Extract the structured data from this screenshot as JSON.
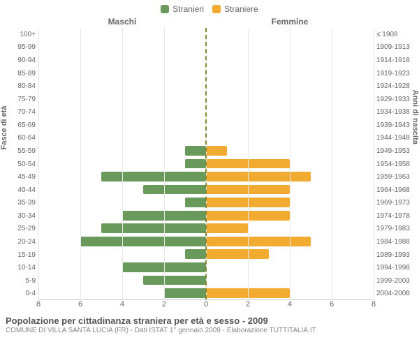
{
  "chart": {
    "type": "population-pyramid",
    "legend": {
      "male": {
        "label": "Stranieri",
        "color": "#6a9a5b"
      },
      "female": {
        "label": "Straniere",
        "color": "#f0ab30"
      }
    },
    "headers": {
      "male": "Maschi",
      "female": "Femmine"
    },
    "axis_labels": {
      "left": "Fasce di età",
      "right": "Anni di nascita"
    },
    "x_max": 8,
    "x_ticks": [
      8,
      6,
      4,
      2,
      0,
      2,
      4,
      6,
      8
    ],
    "grid_color": "#e8e8e8",
    "center_line_color": "#888833",
    "background_color": "#ffffff",
    "tick_color": "#666666",
    "tick_fontsize": 10,
    "bar_height_pct": 74,
    "rows": [
      {
        "age": "100+",
        "birth": "≤ 1908",
        "m": 0,
        "f": 0
      },
      {
        "age": "95-99",
        "birth": "1909-1913",
        "m": 0,
        "f": 0
      },
      {
        "age": "90-94",
        "birth": "1914-1918",
        "m": 0,
        "f": 0
      },
      {
        "age": "85-89",
        "birth": "1919-1923",
        "m": 0,
        "f": 0
      },
      {
        "age": "80-84",
        "birth": "1924-1928",
        "m": 0,
        "f": 0
      },
      {
        "age": "75-79",
        "birth": "1929-1933",
        "m": 0,
        "f": 0
      },
      {
        "age": "70-74",
        "birth": "1934-1938",
        "m": 0,
        "f": 0
      },
      {
        "age": "65-69",
        "birth": "1939-1943",
        "m": 0,
        "f": 0
      },
      {
        "age": "60-64",
        "birth": "1944-1948",
        "m": 0,
        "f": 0
      },
      {
        "age": "55-59",
        "birth": "1949-1953",
        "m": 1,
        "f": 1
      },
      {
        "age": "50-54",
        "birth": "1954-1958",
        "m": 1,
        "f": 4
      },
      {
        "age": "45-49",
        "birth": "1959-1963",
        "m": 5,
        "f": 5
      },
      {
        "age": "40-44",
        "birth": "1964-1968",
        "m": 3,
        "f": 4
      },
      {
        "age": "35-39",
        "birth": "1969-1973",
        "m": 1,
        "f": 4
      },
      {
        "age": "30-34",
        "birth": "1974-1978",
        "m": 4,
        "f": 4
      },
      {
        "age": "25-29",
        "birth": "1979-1983",
        "m": 5,
        "f": 2
      },
      {
        "age": "20-24",
        "birth": "1984-1988",
        "m": 6,
        "f": 5
      },
      {
        "age": "15-19",
        "birth": "1989-1993",
        "m": 1,
        "f": 3
      },
      {
        "age": "10-14",
        "birth": "1994-1998",
        "m": 4,
        "f": 0
      },
      {
        "age": "5-9",
        "birth": "1999-2003",
        "m": 3,
        "f": 0
      },
      {
        "age": "0-4",
        "birth": "2004-2008",
        "m": 2,
        "f": 4
      }
    ]
  },
  "title": "Popolazione per cittadinanza straniera per età e sesso - 2009",
  "subtitle": "COMUNE DI VILLA SANTA LUCIA (FR) - Dati ISTAT 1° gennaio 2009 - Elaborazione TUTTITALIA.IT"
}
